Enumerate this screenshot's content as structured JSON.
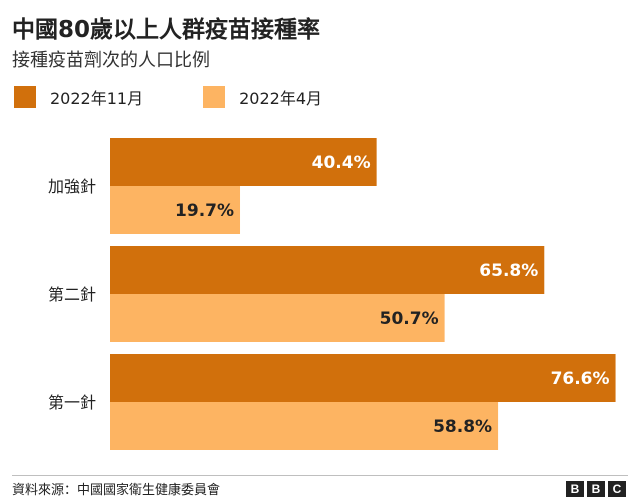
{
  "header": {
    "title": "中國80歲以上人群疫苗接種率",
    "subtitle": "接種疫苗劑次的人口比例"
  },
  "chart_data": {
    "type": "bar",
    "orientation": "horizontal",
    "title": "中國80歲以上人群疫苗接種率",
    "subtitle": "接種疫苗劑次的人口比例",
    "categories": [
      "加強針",
      "第二針",
      "第一針"
    ],
    "series": [
      {
        "name": "2022年11月",
        "color": "#d1700c",
        "values": [
          40.4,
          65.8,
          76.6
        ],
        "labels": [
          "40.4%",
          "65.8%",
          "76.6%"
        ]
      },
      {
        "name": "2022年4月",
        "color": "#fdb462",
        "values": [
          19.7,
          50.7,
          58.8
        ],
        "labels": [
          "19.7%",
          "50.7%",
          "58.8%"
        ]
      }
    ],
    "xlim": [
      0,
      100
    ],
    "grid": false,
    "legend_position": "top-left",
    "value_unit": "%"
  },
  "footer": {
    "source": "資料來源：中國國家衛生健康委員會",
    "logo_letters": [
      "B",
      "B",
      "C"
    ]
  }
}
